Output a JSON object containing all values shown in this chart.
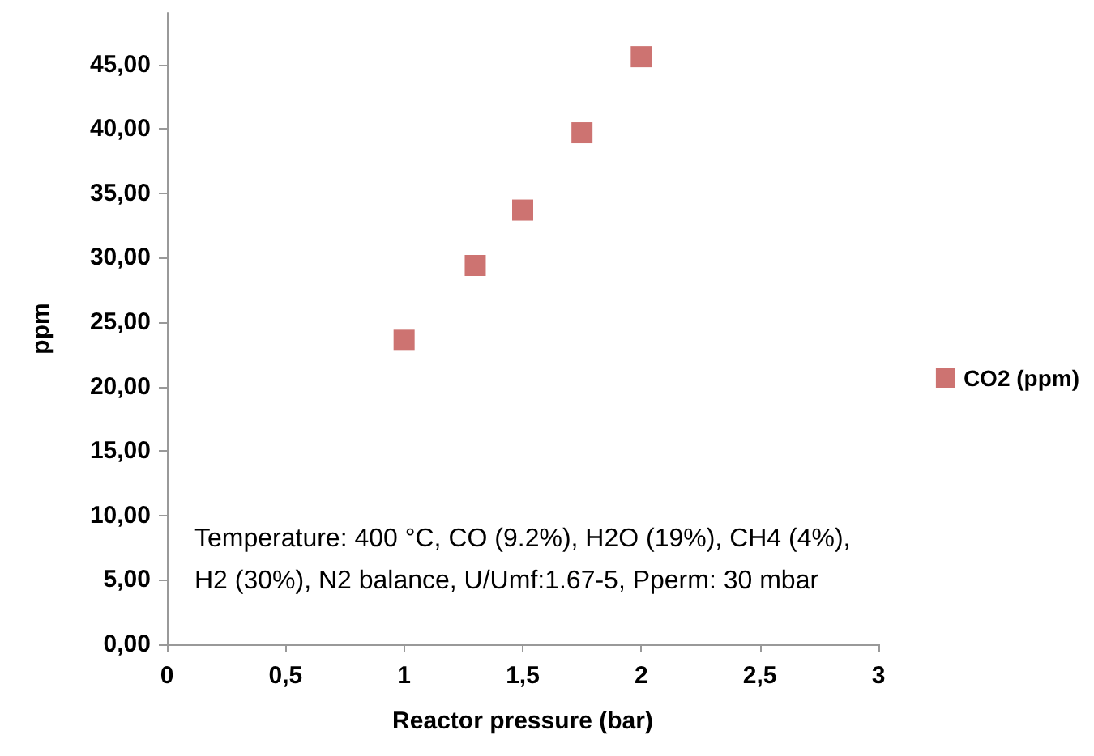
{
  "chart_data": {
    "type": "scatter",
    "xlabel": "Reactor pressure (bar)",
    "ylabel": "ppm",
    "x": [
      1,
      1.3,
      1.5,
      1.75,
      2
    ],
    "series": [
      {
        "name": "CO2 (ppm)",
        "color": "#c0504d",
        "values": [
          23.6,
          29.4,
          33.7,
          39.7,
          45.6
        ]
      }
    ],
    "xlim": [
      0,
      3
    ],
    "xticks": [
      0,
      {
        "value": 0.5,
        "label": "0,5"
      },
      1,
      {
        "value": 1.5,
        "label": "1,5"
      },
      2,
      {
        "value": 2.5,
        "label": "2,5"
      },
      3
    ],
    "ylim": [
      0,
      49
    ],
    "yticks": [
      {
        "value": 0,
        "label": "0,00"
      },
      {
        "value": 5,
        "label": "5,00"
      },
      {
        "value": 10,
        "label": "10,00"
      },
      {
        "value": 15,
        "label": "15,00"
      },
      {
        "value": 20,
        "label": "20,00"
      },
      {
        "value": 25,
        "label": "25,00"
      },
      {
        "value": 30,
        "label": "30,00"
      },
      {
        "value": 35,
        "label": "35,00"
      },
      {
        "value": 40,
        "label": "40,00"
      },
      {
        "value": 45,
        "label": "45,00"
      }
    ],
    "annotations": [
      "Temperature: 400 °C, CO (9.2%), H2O (19%), CH4 (4%),\nH2 (30%), N2 balance, U/Umf:1.67-5, Pperm: 30 mbar"
    ],
    "grid": false,
    "legend": "right",
    "marker": "square"
  }
}
